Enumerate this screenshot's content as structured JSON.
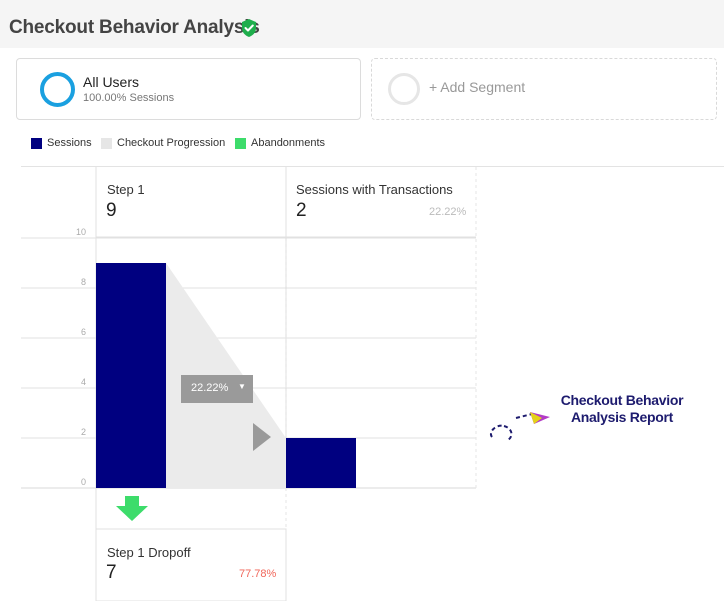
{
  "header": {
    "title": "Checkout Behavior Analysis"
  },
  "segments": {
    "active": {
      "name": "All Users",
      "sub": "100.00% Sessions"
    },
    "add_label": "+ Add Segment"
  },
  "legend": [
    {
      "label": "Sessions",
      "color": "#000080"
    },
    {
      "label": "Checkout Progression",
      "color": "#e6e6e6"
    },
    {
      "label": "Abandonments",
      "color": "#3ddc6b"
    }
  ],
  "chart_data": {
    "type": "bar",
    "categories": [
      "Step 1",
      "Sessions with Transactions"
    ],
    "values": [
      9,
      2
    ],
    "ylim": [
      0,
      10
    ],
    "y_ticks": [
      "0",
      "2",
      "4",
      "6",
      "8",
      "10"
    ],
    "bar_color": "#000080",
    "progression_color": "#ebebeb",
    "progression_pct": "22.22%",
    "steps": [
      {
        "label": "Step 1",
        "value": "9"
      },
      {
        "label": "Sessions with Transactions",
        "value": "2",
        "pct": "22.22%"
      }
    ],
    "dropoff": {
      "label": "Step 1 Dropoff",
      "value": "7",
      "pct": "77.78%"
    }
  },
  "watermark": {
    "line1": "Checkout Behavior",
    "line2": "Analysis Report"
  }
}
